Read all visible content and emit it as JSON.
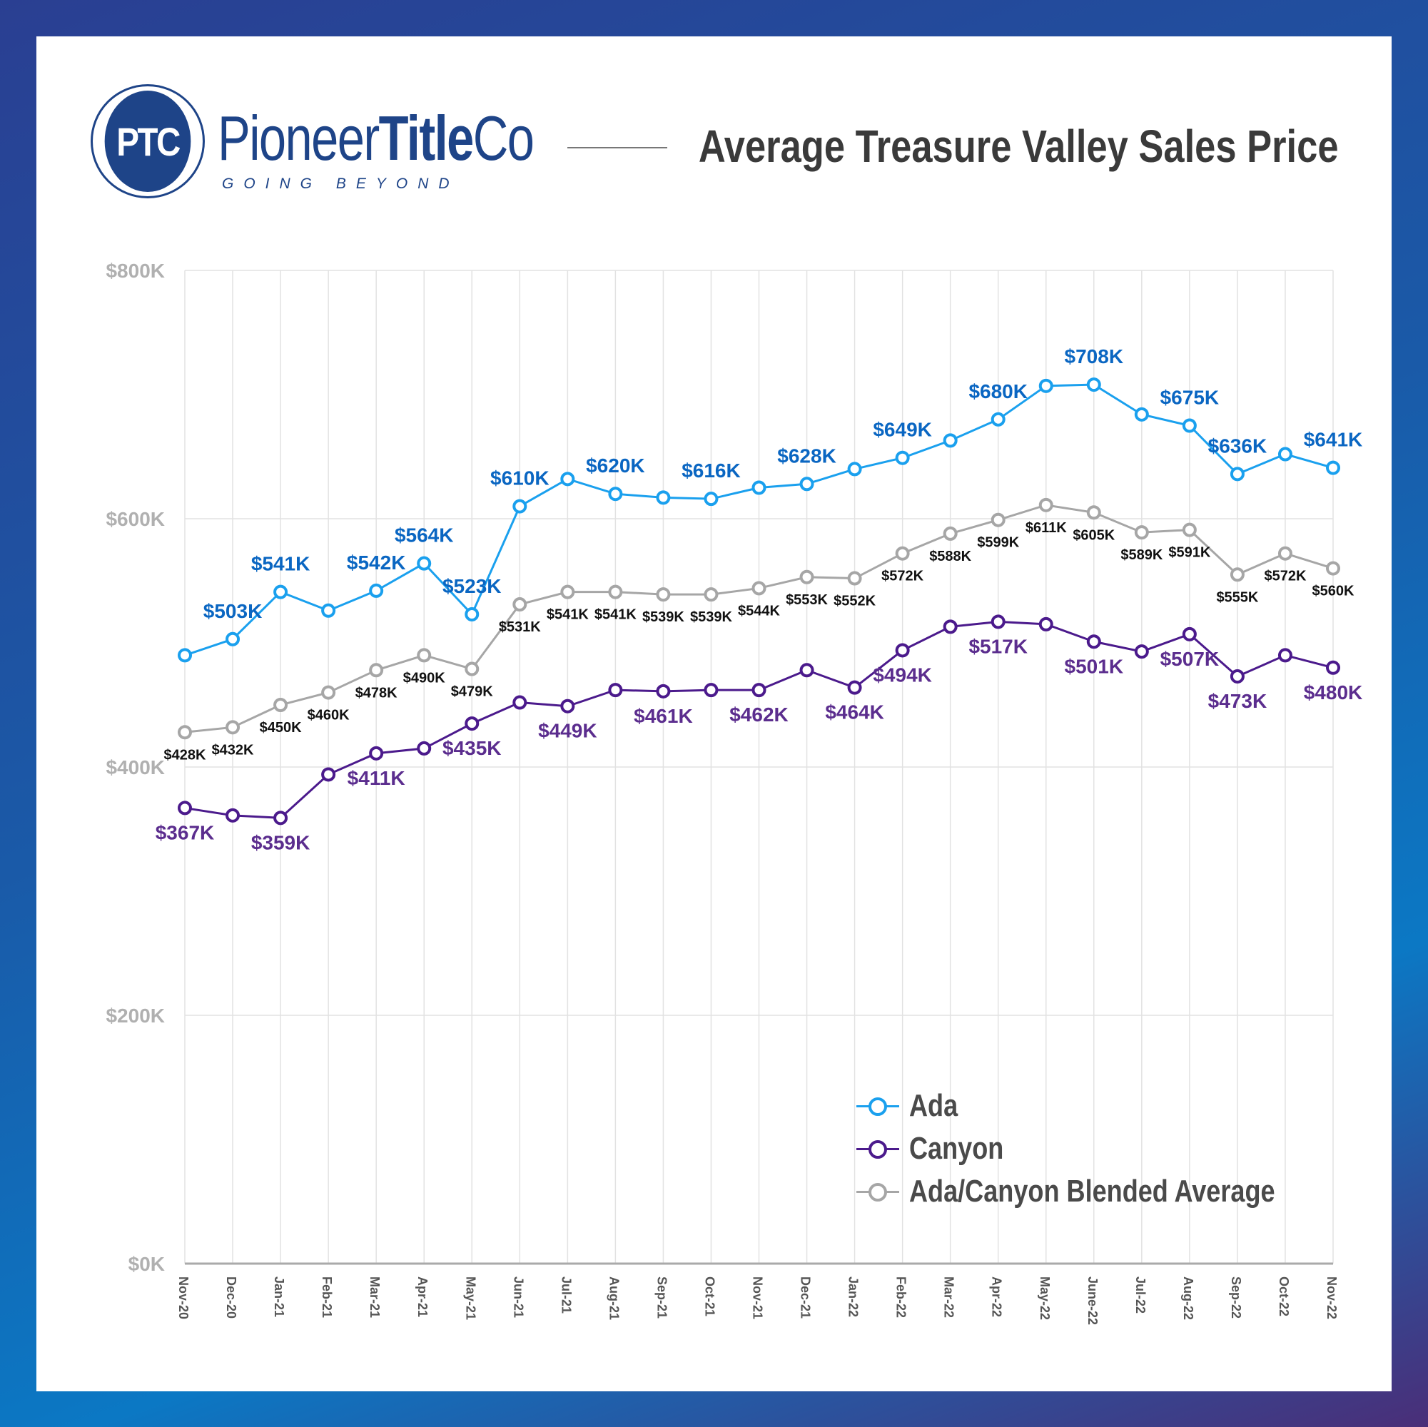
{
  "header": {
    "logo_mark": "PTC",
    "brand_light": "Pioneer",
    "brand_bold": "Title",
    "brand_end": "Co",
    "tagline": "GOING BEYOND",
    "title": "Average Treasure Valley Sales Price"
  },
  "chart_data": {
    "type": "line",
    "title": "Average Treasure Valley Sales Price",
    "xlabel": "",
    "ylabel": "",
    "ylim": [
      0,
      800
    ],
    "yticks": [
      0,
      200,
      400,
      600,
      800
    ],
    "ytick_labels": [
      "$0K",
      "$200K",
      "$400K",
      "$600K",
      "$800K"
    ],
    "grid": true,
    "legend_position": "bottom-right",
    "categories": [
      "Nov-20",
      "Dec-20",
      "Jan-21",
      "Feb-21",
      "Mar-21",
      "Apr-21",
      "May-21",
      "Jun-21",
      "Jul-21",
      "Aug-21",
      "Sep-21",
      "Oct-21",
      "Nov-21",
      "Dec-21",
      "Jan-22",
      "Feb-22",
      "Mar-22",
      "Apr-22",
      "May-22",
      "June-22",
      "Jul-22",
      "Aug-22",
      "Sep-22",
      "Oct-22",
      "Nov-22"
    ],
    "series": [
      {
        "name": "Ada",
        "color": "#1aa0ee",
        "label_color": "#0a66c2",
        "label_pos": "above",
        "values": [
          490,
          503,
          541,
          526,
          542,
          564,
          523,
          610,
          632,
          620,
          617,
          616,
          625,
          628,
          640,
          649,
          663,
          680,
          707,
          708,
          684,
          675,
          636,
          652,
          641
        ],
        "labels": [
          null,
          "$503K",
          "$541K",
          null,
          "$542K",
          "$564K",
          "$523K",
          "$610K",
          null,
          "$620K",
          null,
          "$616K",
          null,
          "$628K",
          null,
          "$649K",
          null,
          "$680K",
          null,
          "$708K",
          null,
          "$675K",
          "$636K",
          null,
          "$641K"
        ]
      },
      {
        "name": "Canyon",
        "color": "#4b1a8c",
        "label_color": "#5b2d8e",
        "label_pos": "below",
        "values": [
          367,
          361,
          359,
          394,
          411,
          415,
          435,
          452,
          449,
          462,
          461,
          462,
          462,
          478,
          464,
          494,
          513,
          517,
          515,
          501,
          493,
          507,
          473,
          490,
          480
        ],
        "labels": [
          "$367K",
          null,
          "$359K",
          null,
          "$411K",
          null,
          "$435K",
          null,
          "$449K",
          null,
          "$461K",
          null,
          "$462K",
          null,
          "$464K",
          "$494K",
          null,
          "$517K",
          null,
          "$501K",
          null,
          "$507K",
          "$473K",
          null,
          "$480K"
        ]
      },
      {
        "name": "Ada/Canyon Blended Average",
        "color": "#a6a6a6",
        "label_color": "#111111",
        "label_pos": "below",
        "values": [
          428,
          432,
          450,
          460,
          478,
          490,
          479,
          531,
          541,
          541,
          539,
          539,
          544,
          553,
          552,
          572,
          588,
          599,
          611,
          605,
          589,
          591,
          555,
          572,
          560
        ],
        "labels": [
          "$428K",
          "$432K",
          "$450K",
          "$460K",
          "$478K",
          "$490K",
          "$479K",
          "$531K",
          "$541K",
          "$541K",
          "$539K",
          "$539K",
          "$544K",
          "$553K",
          "$552K",
          "$572K",
          "$588K",
          "$599K",
          "$611K",
          "$605K",
          "$589K",
          "$591K",
          "$555K",
          "$572K",
          "$560K"
        ]
      }
    ]
  }
}
